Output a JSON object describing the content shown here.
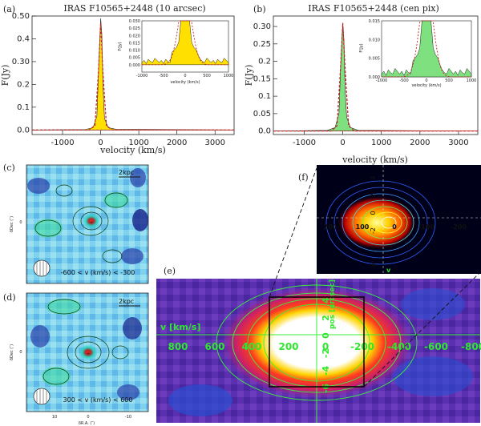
{
  "chart_data": [
    {
      "type": "line",
      "panel": "(a)",
      "title": "IRAS F10565+2448 (10 arcsec)",
      "xlabel": "velocity (km/s)",
      "ylabel": "F(Jy)",
      "xlim": [
        -1800,
        3500
      ],
      "ylim": [
        -0.02,
        0.5
      ],
      "xticks": [
        -1000,
        0,
        1000,
        2000,
        3000
      ],
      "yticks": [
        0.0,
        0.1,
        0.2,
        0.3,
        0.4,
        0.5
      ],
      "fill_color": "#ffe000",
      "series": [
        {
          "name": "observed",
          "x": [
            -1800,
            -400,
            -200,
            -100,
            -50,
            0,
            30,
            60,
            100,
            200,
            400,
            3500
          ],
          "y": [
            0.0,
            0.002,
            0.01,
            0.06,
            0.28,
            0.49,
            0.42,
            0.2,
            0.05,
            0.01,
            0.003,
            0.0
          ]
        },
        {
          "name": "gaussian fit",
          "style": "dashed",
          "color": "#cc2020",
          "x": [
            -1800,
            -300,
            -150,
            -60,
            0,
            60,
            150,
            300,
            3500
          ],
          "y": [
            0.0,
            0.0,
            0.02,
            0.25,
            0.47,
            0.25,
            0.02,
            0.0,
            0.0
          ]
        }
      ],
      "inset": {
        "xlabel": "velocity (km/s)",
        "ylabel": "F(Jy)",
        "xlim": [
          -1000,
          1000
        ],
        "ylim": [
          -0.005,
          0.03
        ],
        "xticks": [
          -1000,
          -500,
          0,
          500,
          1000
        ],
        "yticks": [
          "0.000",
          "0.005",
          "0.010",
          "0.015",
          "0.020",
          "0.025",
          "0.030"
        ],
        "tick_labels_x": [
          "-1000",
          "-500",
          "0",
          "500",
          "1000"
        ]
      }
    },
    {
      "type": "line",
      "panel": "(b)",
      "title": "IRAS F10565+2448 (cen pix)",
      "xlabel": "velocity (km/s)",
      "ylabel": "F(Jy)",
      "xlim": [
        -1800,
        3500
      ],
      "ylim": [
        -0.01,
        0.33
      ],
      "xticks": [
        -1000,
        0,
        1000,
        2000,
        3000
      ],
      "yticks": [
        0.0,
        0.05,
        0.1,
        0.15,
        0.2,
        0.25,
        0.3
      ],
      "fill_color": "#7fe07f",
      "series": [
        {
          "name": "observed",
          "x": [
            -1800,
            -400,
            -200,
            -100,
            -50,
            0,
            30,
            60,
            100,
            200,
            400,
            3500
          ],
          "y": [
            0.0,
            0.002,
            0.01,
            0.05,
            0.2,
            0.31,
            0.26,
            0.12,
            0.04,
            0.01,
            0.002,
            0.0
          ]
        },
        {
          "name": "gaussian fit",
          "style": "dashed",
          "color": "#cc2020",
          "x": [
            -1800,
            -300,
            -150,
            -60,
            0,
            60,
            150,
            300,
            3500
          ],
          "y": [
            0.0,
            0.0,
            0.015,
            0.18,
            0.31,
            0.18,
            0.015,
            0.0,
            0.0
          ]
        }
      ],
      "inset": {
        "xlabel": "velocity (km/s)",
        "ylabel": "F(Jy)",
        "xlim": [
          -1000,
          1000
        ],
        "ylim": [
          0.0,
          0.015
        ],
        "yticks": [
          "0.000",
          "0.005",
          "0.010",
          "0.015"
        ],
        "tick_labels_x": [
          "-1000",
          "-500",
          "0",
          "500",
          "1000"
        ]
      }
    },
    {
      "type": "heatmap",
      "panel": "(c)",
      "scale_label": "2kpc",
      "velocity_range": "-600 < v (km/s) < -300",
      "ylabel": "δDec (″)",
      "yticks": [
        "0"
      ]
    },
    {
      "type": "heatmap",
      "panel": "(d)",
      "scale_label": "2kpc",
      "velocity_range": "300 < v (km/s) < 600",
      "ylabel": "δDec (″)",
      "xlabel": "δR.A. (″)",
      "xticks": [
        "10",
        "0",
        "-10"
      ],
      "yticks": [
        "0"
      ]
    },
    {
      "type": "heatmap",
      "panel": "(e)",
      "velocity_axis_label": "v [km/s]",
      "velocity_ticks": [
        "800",
        "600",
        "400",
        "200",
        "0",
        "-200",
        "-400",
        "-600",
        "-800"
      ],
      "pos_axis_label": "pos [arcsec]",
      "pos_ticks": [
        "4",
        "2",
        "0",
        "-2",
        "-4",
        "-6"
      ]
    },
    {
      "type": "heatmap",
      "panel": "(f)",
      "velocity_ticks": [
        "200",
        "100",
        "0",
        "-100",
        "-200"
      ],
      "pos_ticks": [
        "4",
        "2",
        "0",
        "-2",
        "-4",
        "-6"
      ],
      "v_label": "v"
    }
  ]
}
